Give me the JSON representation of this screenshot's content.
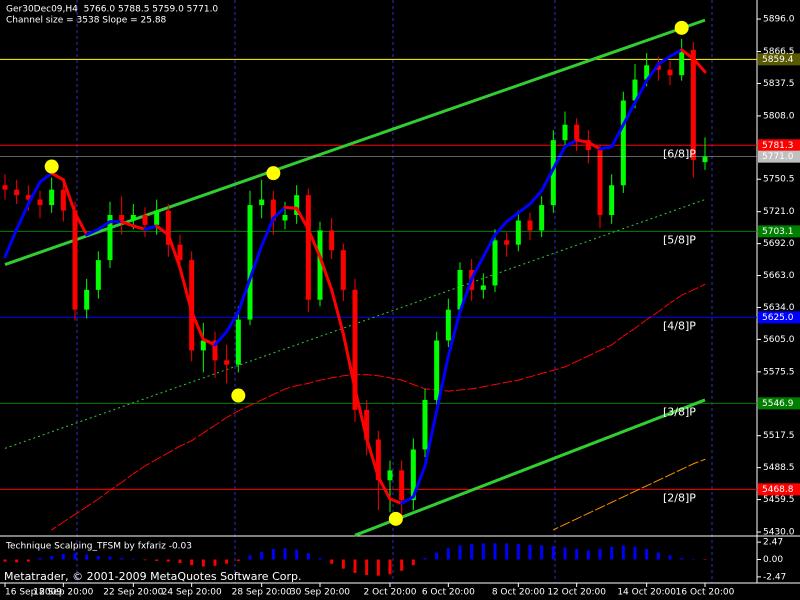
{
  "chart_data": [
    {
      "type": "candlestick",
      "title": "Ger30Dec09,H4  5766.0 5788.5 5759.0 5771.0",
      "subtitle": "Channel size = 3538 Slope = 25.88",
      "footer": "Metatrader, © 2001-2009 MetaQuotes Software Corp.",
      "categories": [
        "16 Sep 2009",
        null,
        null,
        null,
        null,
        "18 Sep 20:00",
        null,
        null,
        null,
        null,
        null,
        "22 Sep 20:00",
        null,
        null,
        null,
        null,
        "24 Sep 20:00",
        null,
        null,
        null,
        null,
        null,
        "28 Sep 20:00",
        null,
        null,
        null,
        null,
        "30 Sep 20:00",
        null,
        null,
        null,
        null,
        null,
        "2 Oct 20:00",
        null,
        null,
        null,
        null,
        "6 Oct 20:00",
        null,
        null,
        null,
        null,
        null,
        "8 Oct 20:00",
        null,
        null,
        null,
        null,
        "12 Oct 20:00",
        null,
        null,
        null,
        null,
        null,
        "14 Oct 20:00",
        null,
        null,
        null,
        null,
        "16 Oct 20:00"
      ],
      "open": [
        5745,
        5741,
        5736,
        5732,
        5727,
        5741,
        5722,
        5632,
        5650,
        5677,
        5718,
        5713,
        5718,
        5709,
        5722,
        5691,
        5677,
        5595,
        5604,
        5586,
        5582,
        5623,
        5727,
        5732,
        5713,
        5718,
        5736,
        5641,
        5704,
        5686,
        5650,
        5541,
        5514,
        5477,
        5486,
        5459,
        5505,
        5550,
        5604,
        5632,
        5668,
        5650,
        5654,
        5695,
        5691,
        5713,
        5704,
        5727,
        5786,
        5800,
        5786,
        5777,
        5718,
        5745,
        5822,
        5841,
        5854,
        5850,
        5845,
        5868,
        5766
      ],
      "high": [
        5755,
        5750,
        5745,
        5740,
        5752,
        5750,
        5730,
        5660,
        5685,
        5730,
        5735,
        5728,
        5725,
        5732,
        5728,
        5700,
        5685,
        5620,
        5612,
        5600,
        5635,
        5740,
        5750,
        5740,
        5730,
        5745,
        5742,
        5712,
        5715,
        5692,
        5660,
        5550,
        5522,
        5495,
        5495,
        5515,
        5560,
        5612,
        5642,
        5675,
        5678,
        5665,
        5705,
        5702,
        5722,
        5720,
        5735,
        5795,
        5812,
        5806,
        5795,
        5782,
        5755,
        5830,
        5855,
        5865,
        5862,
        5858,
        5878,
        5875,
        5788.5
      ],
      "low": [
        5732,
        5728,
        5722,
        5715,
        5720,
        5712,
        5622,
        5624,
        5642,
        5670,
        5700,
        5705,
        5698,
        5700,
        5680,
        5665,
        5585,
        5575,
        5570,
        5565,
        5575,
        5618,
        5715,
        5700,
        5705,
        5710,
        5630,
        5635,
        5678,
        5640,
        5530,
        5500,
        5450,
        5448,
        5440,
        5450,
        5498,
        5545,
        5598,
        5625,
        5640,
        5642,
        5648,
        5680,
        5685,
        5695,
        5698,
        5720,
        5778,
        5776,
        5765,
        5706,
        5710,
        5738,
        5815,
        5835,
        5840,
        5836,
        5840,
        5752,
        5759
      ],
      "close": [
        5741,
        5736,
        5732,
        5727,
        5741,
        5722,
        5632,
        5650,
        5677,
        5718,
        5713,
        5718,
        5709,
        5722,
        5691,
        5677,
        5595,
        5604,
        5586,
        5582,
        5623,
        5727,
        5732,
        5713,
        5718,
        5736,
        5641,
        5704,
        5686,
        5650,
        5541,
        5514,
        5477,
        5486,
        5459,
        5505,
        5550,
        5604,
        5632,
        5668,
        5650,
        5654,
        5695,
        5691,
        5713,
        5704,
        5727,
        5786,
        5800,
        5786,
        5777,
        5718,
        5745,
        5822,
        5841,
        5854,
        5850,
        5845,
        5868,
        5768,
        5771
      ],
      "up_color": "#00ff00",
      "down_color": "#ff0000",
      "series": [
        {
          "color": "#ff0000",
          "dashed": true,
          "values": [
            null,
            null,
            null,
            null,
            5432,
            5439,
            5446,
            5453,
            5460,
            5468,
            5475,
            5483,
            5490,
            5496,
            5502,
            5508,
            5513,
            5520,
            5527,
            5534,
            5540,
            5545,
            5550,
            5555,
            5560,
            5563,
            5565,
            5568,
            5570,
            5572,
            5573,
            5573,
            5572,
            5570,
            5568,
            5564,
            5560,
            5559,
            5558,
            5559,
            5560,
            5562,
            5564,
            5566,
            5568,
            5571,
            5574,
            5577,
            5580,
            5585,
            5590,
            5595,
            5600,
            5608,
            5615,
            5623,
            5630,
            5638,
            5645,
            5650,
            5655
          ]
        },
        {
          "color": "#ff8c00",
          "dashed": true,
          "values": [
            null,
            null,
            null,
            null,
            null,
            null,
            null,
            null,
            null,
            null,
            null,
            null,
            null,
            null,
            null,
            null,
            null,
            null,
            null,
            null,
            null,
            null,
            null,
            null,
            null,
            null,
            null,
            null,
            null,
            null,
            null,
            null,
            null,
            null,
            null,
            null,
            null,
            null,
            null,
            null,
            null,
            null,
            null,
            null,
            null,
            null,
            null,
            5432,
            5437,
            5442,
            5447,
            5452,
            5457,
            5462,
            5467,
            5472,
            5477,
            5482,
            5487,
            5492,
            5496
          ]
        },
        {
          "color": "#0000ff",
          "down_color": "#ff0000",
          "values": [
            5680,
            5705,
            5728,
            5748,
            5756,
            5750,
            5720,
            5700,
            5705,
            5712,
            5712,
            5708,
            5705,
            5708,
            5700,
            5670,
            5630,
            5605,
            5600,
            5612,
            5630,
            5660,
            5690,
            5715,
            5725,
            5724,
            5705,
            5680,
            5650,
            5610,
            5560,
            5515,
            5480,
            5460,
            5456,
            5462,
            5490,
            5540,
            5590,
            5630,
            5660,
            5680,
            5700,
            5712,
            5720,
            5728,
            5740,
            5760,
            5780,
            5786,
            5784,
            5778,
            5780,
            5800,
            5820,
            5840,
            5855,
            5862,
            5868,
            5860,
            5848
          ]
        }
      ],
      "channel": {
        "color": "#32cd32",
        "lines": [
          {
            "points": [
              [
                0,
                5673
              ],
              [
                60,
                5895
              ]
            ]
          },
          {
            "points": [
              [
                30,
                5427
              ],
              [
                60,
                5550
              ]
            ]
          },
          {
            "points": [
              [
                0,
                5506
              ],
              [
                60,
                5732
              ]
            ],
            "dotted": true
          }
        ]
      },
      "markers": {
        "color": "#ffff00",
        "points": [
          {
            "x": 4,
            "y": 5762
          },
          {
            "x": 20,
            "y": 5554
          },
          {
            "x": 23,
            "y": 5756
          },
          {
            "x": 33.5,
            "y": 5442
          },
          {
            "x": 58,
            "y": 5888
          }
        ]
      },
      "levels": [
        {
          "value": 5859.4,
          "color": "#ffff00",
          "label_color": "#ffff00"
        },
        {
          "value": 5781.3,
          "color": "#ff0000",
          "label_color": "#ffffff",
          "murrey": "[6/8]P"
        },
        {
          "value": 5703.1,
          "color": "#008000",
          "label_color": "#ffffff",
          "murrey": "[5/8]P"
        },
        {
          "value": 5625.0,
          "label": "5625.0",
          "color": "#0000ff",
          "label_color": "#ffffff",
          "murrey": "[4/8]P"
        },
        {
          "value": 5546.9,
          "color": "#008000",
          "label_color": "#ffffff",
          "murrey": "[3/8]P"
        },
        {
          "value": 5468.8,
          "color": "#ff0000",
          "label_color": "#ffffff",
          "murrey": "[2/8]P"
        }
      ],
      "last": {
        "value": 5771,
        "label": "5771.0",
        "color": "#c0c0c0",
        "label_color": "#000000"
      },
      "ylim": [
        5427.3,
        5913.3
      ],
      "yticks": [
        {
          "value": 5896,
          "label": "5896.0"
        },
        5866.5,
        5837.5,
        {
          "value": 5808,
          "label": "5808.0"
        },
        5750.5,
        {
          "value": 5721,
          "label": "5721.0"
        },
        {
          "value": 5692,
          "label": "5692.0"
        },
        {
          "value": 5663,
          "label": "5663.0"
        },
        {
          "value": 5634,
          "label": "5634.0"
        },
        {
          "value": 5605,
          "label": "5605.0"
        },
        5575.5,
        5517.5,
        5488.5,
        5459.5,
        {
          "value": 5430,
          "label": "5430.0"
        }
      ]
    },
    {
      "type": "bar",
      "title": "Technique Scalping_TFSM by fxfariz -0.03",
      "color": "#0000ff",
      "negative_color": "#ff0000",
      "values": [
        -0.3,
        -0.4,
        -0.3,
        0.2,
        0.5,
        0.8,
        0.9,
        0.7,
        0.5,
        0.4,
        0.2,
        0.1,
        -0.1,
        -0.2,
        -0.3,
        -0.5,
        -0.8,
        -1.0,
        -0.9,
        -0.6,
        -0.2,
        0.6,
        1.1,
        1.5,
        1.6,
        1.4,
        0.9,
        0.2,
        -0.6,
        -1.3,
        -1.9,
        -2.2,
        -2.3,
        -2.1,
        -1.6,
        -0.8,
        0.2,
        1.0,
        1.6,
        2.0,
        2.2,
        2.3,
        2.3,
        2.3,
        2.2,
        2.1,
        2.0,
        1.9,
        1.7,
        1.5,
        1.3,
        1.5,
        1.8,
        2.0,
        1.8,
        1.5,
        1.0,
        0.6,
        0.2,
        0.0,
        -0.03
      ],
      "ylim": [
        -3.34,
        3.2
      ],
      "yticks": [
        2.47,
        {
          "value": 0,
          "label": "0.00"
        },
        -2.47
      ]
    }
  ]
}
